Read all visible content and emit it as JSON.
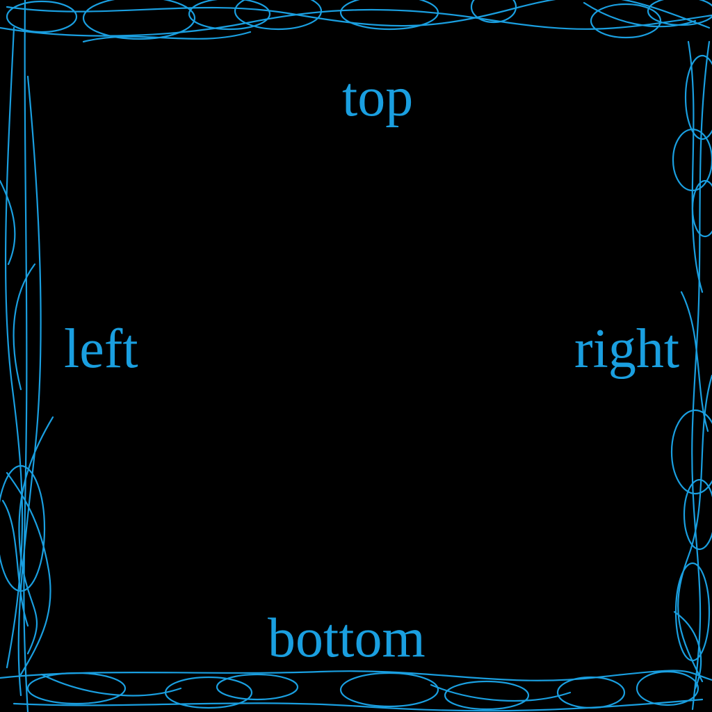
{
  "labels": {
    "top": "top",
    "left": "left",
    "right": "right",
    "bottom": "bottom"
  },
  "colors": {
    "background": "#000000",
    "ink": "#1a9fe0"
  }
}
